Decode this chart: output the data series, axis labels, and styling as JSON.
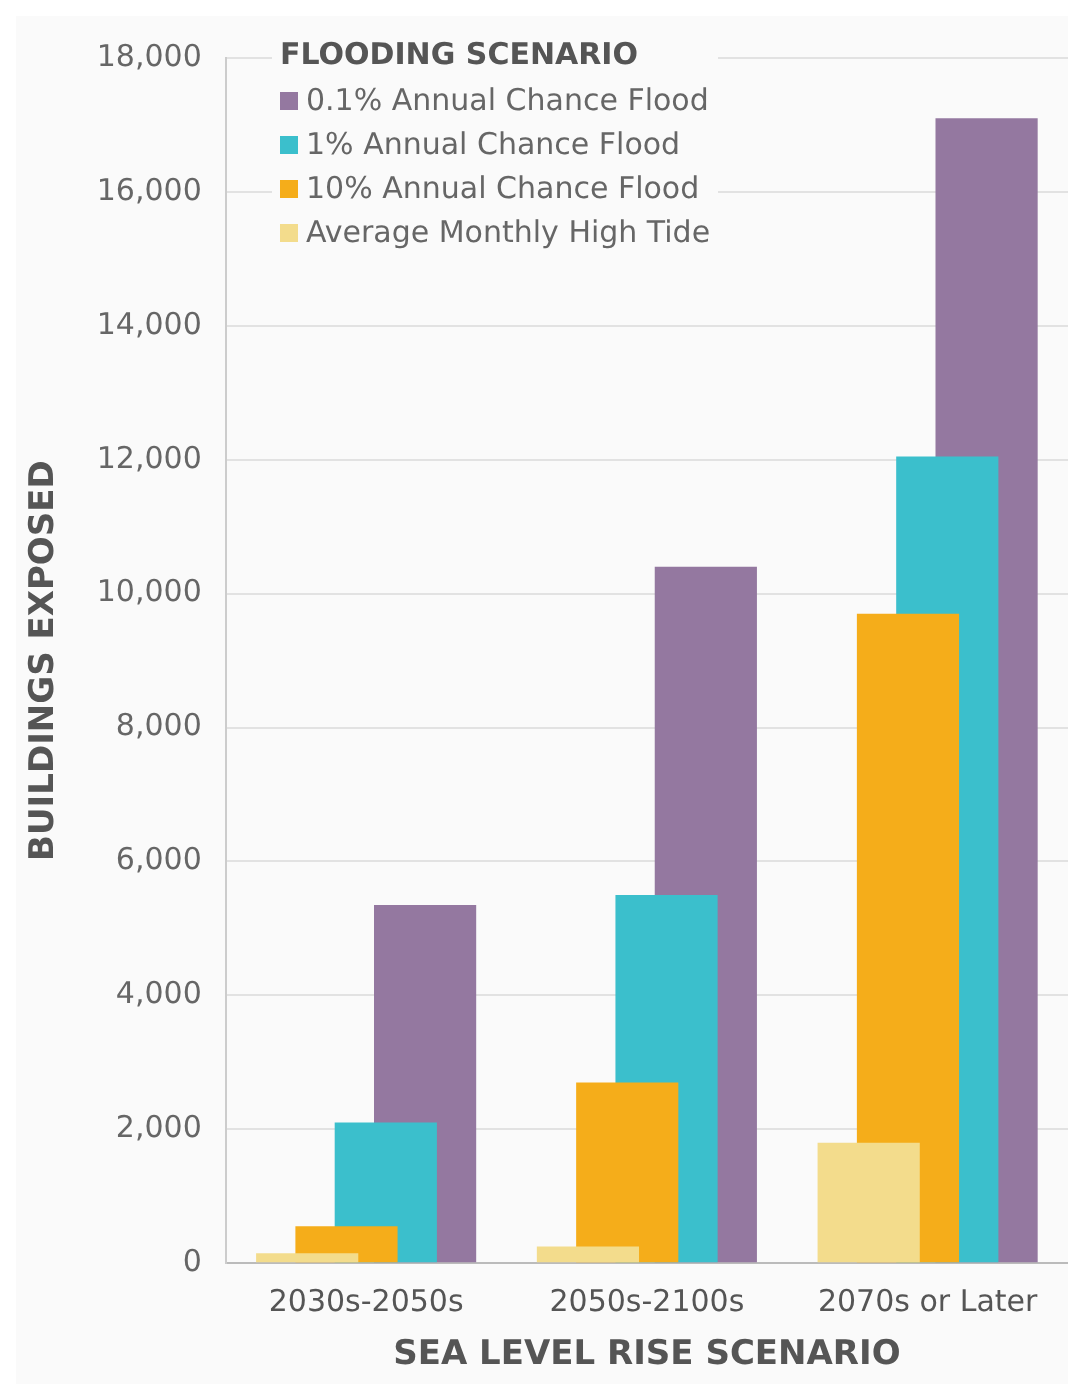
{
  "chart_data": {
    "type": "bar",
    "xlabel": "SEA LEVEL RISE SCENARIO",
    "ylabel": "BUILDINGS EXPOSED",
    "legend_title": "FLOODING SCENARIO",
    "legend": "top left",
    "grid": "y",
    "categories": [
      "2030s-2050s",
      "2050s-2100s",
      "2070s or Later"
    ],
    "series": [
      {
        "name": "0.1% Annual Chance Flood",
        "color": "#9478a0",
        "values": [
          5350,
          10400,
          17100
        ]
      },
      {
        "name": "1% Annual Chance Flood",
        "color": "#3bbfcc",
        "values": [
          2100,
          5500,
          12050
        ]
      },
      {
        "name": "10% Annual Chance Flood",
        "color": "#f5ad1a",
        "values": [
          550,
          2700,
          9700
        ]
      },
      {
        "name": "Average Monthly High Tide",
        "color": "#f3dc8c",
        "values": [
          150,
          250,
          1800
        ]
      }
    ],
    "ylim": [
      0,
      18000
    ],
    "yticks": [
      0,
      {
        "value": 2000,
        "label": "2,000"
      },
      {
        "value": 4000,
        "label": "4,000"
      },
      {
        "value": 6000,
        "label": "6,000"
      },
      {
        "value": 8000,
        "label": "8,000"
      },
      {
        "value": 10000,
        "label": "10,000"
      },
      {
        "value": 12000,
        "label": "12,000"
      },
      {
        "value": 14000,
        "label": "14,000"
      },
      {
        "value": 16000,
        "label": "16,000"
      },
      {
        "value": 18000,
        "label": "18,000"
      }
    ]
  }
}
